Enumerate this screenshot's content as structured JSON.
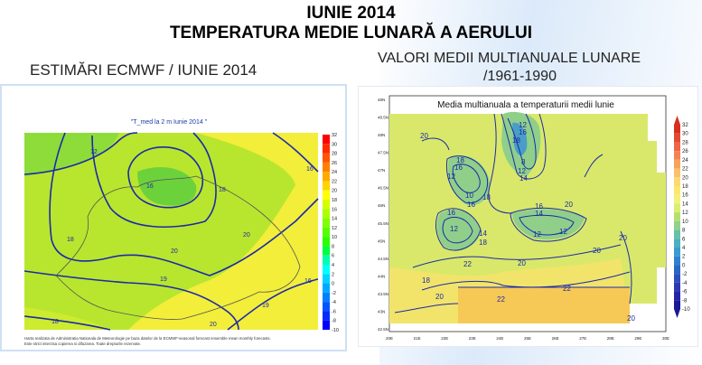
{
  "header": {
    "title_line1": "IUNIE 2014",
    "title_line2": "TEMPERATURA MEDIE LUNARĂ A AERULUI"
  },
  "left_map": {
    "caption": "ESTIMĂRI ECMWF / IUNIE 2014",
    "inner_title": "\"T_med la 2 m Iunie 2014 \"",
    "footnote_line1": "Harta realizata de Administratia Nationala de Meteorologie pe baza datelor de la ECMWF-seasonal forecast ensemble mean monthly forecasts.",
    "footnote_line2": "Este strict interzisa copierea si difuzarea. Toate drepturile rezervate.",
    "contour_labels": [
      "12",
      "16",
      "18",
      "16",
      "18",
      "20",
      "20",
      "19",
      "20",
      "19",
      "18",
      "16"
    ],
    "colorbar_labels": [
      "32",
      "30",
      "28",
      "26",
      "24",
      "22",
      "20",
      "18",
      "16",
      "14",
      "12",
      "10",
      "8",
      "6",
      "4",
      "2",
      "0",
      "-2",
      "-4",
      "-6",
      "-8",
      "-10"
    ],
    "colorbar_colors": [
      "#ff0000",
      "#ff2a00",
      "#ff5500",
      "#ff7f00",
      "#ffaa00",
      "#ffd400",
      "#ffff00",
      "#d4ff00",
      "#aaff00",
      "#7fff00",
      "#55ff00",
      "#2aff00",
      "#00ff40",
      "#00ffaa",
      "#00ffff",
      "#00d4ff",
      "#00aaff",
      "#007fff",
      "#0055ff",
      "#002aff",
      "#0000ff"
    ]
  },
  "right_map": {
    "caption_line1": "VALORI MEDII MULTIANUALE LUNARE",
    "caption_line2": "/1961-1990",
    "inner_title": "Media multianuala a temperaturii medii lunie",
    "contour_labels": [
      "20",
      "12",
      "16",
      "18",
      "8",
      "12",
      "14",
      "18",
      "16",
      "10",
      "12",
      "16",
      "14",
      "16",
      "14",
      "16",
      "12",
      "12",
      "18",
      "18",
      "20",
      "20",
      "12",
      "22",
      "20",
      "18",
      "20",
      "22",
      "22",
      "20",
      "20"
    ],
    "lat_labels": [
      "48N",
      "48.5N",
      "48N",
      "47.5N",
      "47N",
      "46.5N",
      "46N",
      "45.5N",
      "45N",
      "44.5N",
      "44N",
      "43.5N",
      "43N",
      "42.5N"
    ],
    "lon_labels": [
      "20E",
      "21E",
      "22E",
      "23E",
      "24E",
      "25E",
      "26E",
      "27E",
      "28E",
      "29E",
      "30E"
    ],
    "colorbar_labels": [
      "32",
      "30",
      "28",
      "26",
      "24",
      "22",
      "20",
      "18",
      "16",
      "14",
      "12",
      "10",
      "8",
      "6",
      "4",
      "2",
      "0",
      "-2",
      "-4",
      "-6",
      "-8",
      "-10"
    ],
    "colorbar_colors": [
      "#d7301f",
      "#e34a33",
      "#ef6548",
      "#f48354",
      "#f7a35c",
      "#fbc16a",
      "#fdd973",
      "#fbe86a",
      "#f5f07a",
      "#d9ee72",
      "#b4e06c",
      "#8ed28c",
      "#66c2a4",
      "#4bb0c0",
      "#3b9bd1",
      "#2f80d0",
      "#2b66c7",
      "#2a4fbe",
      "#2a3ab4",
      "#2424a8",
      "#1a1a95"
    ]
  }
}
